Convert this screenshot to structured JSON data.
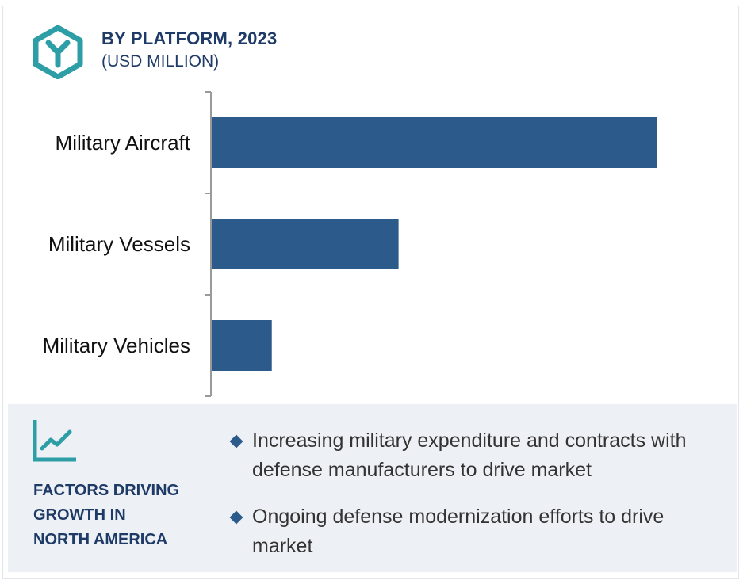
{
  "header": {
    "title": "BY PLATFORM, 2023",
    "subtitle": "(USD MILLION)",
    "logo_icon": "hexagon-y-logo-icon"
  },
  "colors": {
    "bar": "#2c5a8a",
    "accent": "#2e9ea6",
    "heading": "#1e3a66",
    "panel_bg": "#edf0f4"
  },
  "chart_data": {
    "type": "bar",
    "orientation": "horizontal",
    "categories": [
      "Military Aircraft",
      "Military Vessels",
      "Military Vehicles"
    ],
    "values": [
      100,
      42,
      13.5
    ],
    "value_axis": "none",
    "title": "BY PLATFORM, 2023",
    "subtitle": "(USD MILLION)",
    "xlabel": "",
    "ylabel": "",
    "xlim": [
      0,
      100
    ],
    "grid": false,
    "legend": "none"
  },
  "factors": {
    "icon": "line-chart-icon",
    "heading_lines": [
      "FACTORS DRIVING",
      "GROWTH IN",
      "NORTH AMERICA"
    ],
    "bullets": [
      "Increasing military expenditure and contracts with defense manufacturers to drive market",
      "Ongoing defense modernization efforts to drive market"
    ]
  }
}
